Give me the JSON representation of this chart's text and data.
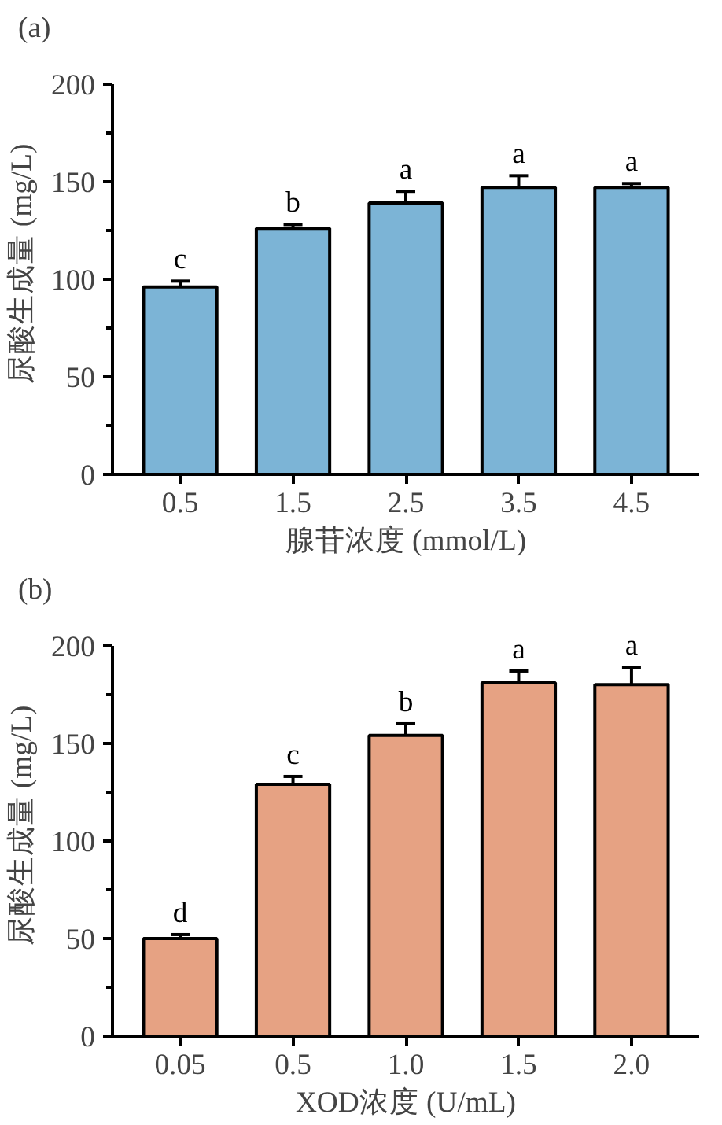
{
  "chart_data": [
    {
      "type": "bar",
      "title": "(a)",
      "xlabel": "腺苷浓度 (mmol/L)",
      "ylabel": "尿酸生成量 (mg/L)",
      "categories": [
        "0.5",
        "1.5",
        "2.5",
        "3.5",
        "4.5"
      ],
      "values": [
        96,
        126,
        139,
        147,
        147
      ],
      "errors": [
        3,
        2,
        6,
        6,
        2
      ],
      "color": "#7cb4d6",
      "ylim": [
        0,
        200
      ],
      "yticks": [
        0,
        50,
        100,
        150,
        200
      ],
      "grid": false,
      "annotations": [
        {
          "text": "c",
          "x": "0.5",
          "y": 99
        },
        {
          "text": "b",
          "x": "1.5",
          "y": 128
        },
        {
          "text": "a",
          "x": "2.5",
          "y": 145
        },
        {
          "text": "a",
          "x": "3.5",
          "y": 153
        },
        {
          "text": "a",
          "x": "4.5",
          "y": 149
        }
      ]
    },
    {
      "type": "bar",
      "title": "(b)",
      "xlabel": "XOD浓度 (U/mL)",
      "ylabel": "尿酸生成量 (mg/L)",
      "categories": [
        "0.05",
        "0.5",
        "1.0",
        "1.5",
        "2.0"
      ],
      "values": [
        50,
        129,
        154,
        181,
        180
      ],
      "errors": [
        2,
        4,
        6,
        6,
        9
      ],
      "color": "#e6a283",
      "ylim": [
        0,
        200
      ],
      "yticks": [
        0,
        50,
        100,
        150,
        200
      ],
      "grid": false,
      "annotations": [
        {
          "text": "d",
          "x": "0.05",
          "y": 52
        },
        {
          "text": "c",
          "x": "0.5",
          "y": 133
        },
        {
          "text": "b",
          "x": "1.0",
          "y": 160
        },
        {
          "text": "a",
          "x": "1.5",
          "y": 187
        },
        {
          "text": "a",
          "x": "2.0",
          "y": 189
        }
      ]
    }
  ]
}
